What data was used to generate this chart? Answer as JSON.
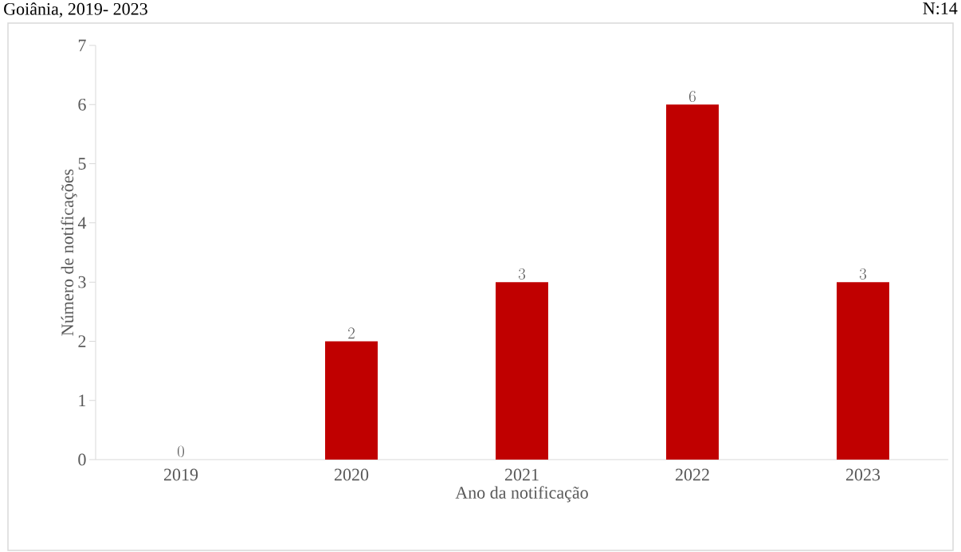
{
  "chart_data": {
    "type": "bar",
    "categories": [
      "2019",
      "2020",
      "2021",
      "2022",
      "2023"
    ],
    "values": [
      0,
      2,
      3,
      6,
      3
    ],
    "color": "#c00000",
    "xlabel": "Ano da notificação",
    "ylabel": "Número de notificações",
    "ylim": [
      0,
      7
    ],
    "yticks": [
      0,
      1,
      2,
      3,
      4,
      5,
      6,
      7
    ],
    "data_labels": true,
    "grid": false,
    "legend": false,
    "annotations": [
      "Goiânia, 2019- 2023",
      "N:14"
    ]
  }
}
